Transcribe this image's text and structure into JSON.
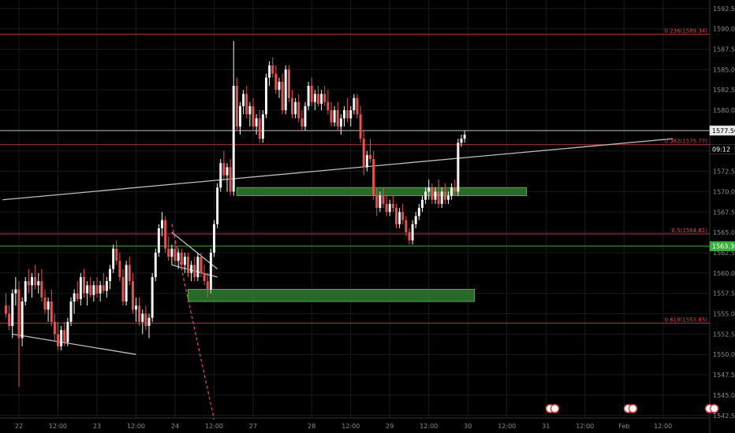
{
  "chart_data": {
    "type": "candlestick",
    "ylim": [
      1542,
      1595
    ],
    "y_ticks": [
      1542.5,
      1545,
      1547.5,
      1550,
      1552.5,
      1555,
      1557.5,
      1560,
      1562.5,
      1565,
      1567.5,
      1570,
      1572.5,
      1575,
      1577.5,
      1580,
      1582.5,
      1585,
      1587.5,
      1590,
      1592.5
    ],
    "x_ticks": [
      {
        "label": "22",
        "t": 0
      },
      {
        "label": "12:00",
        "t": 12
      },
      {
        "label": "23",
        "t": 24
      },
      {
        "label": "12:00",
        "t": 36
      },
      {
        "label": "24",
        "t": 48
      },
      {
        "label": "12:00",
        "t": 60
      },
      {
        "label": "27",
        "t": 72
      },
      {
        "label": "28",
        "t": 90
      },
      {
        "label": "12:00",
        "t": 102
      },
      {
        "label": "29",
        "t": 114
      },
      {
        "label": "12:00",
        "t": 126
      },
      {
        "label": "30",
        "t": 138
      },
      {
        "label": "12:00",
        "t": 150
      },
      {
        "label": "31",
        "t": 162
      },
      {
        "label": "12:00",
        "t": 174
      },
      {
        "label": "Feb",
        "t": 186
      },
      {
        "label": "12:00",
        "t": 198
      }
    ],
    "up_color": "#f5f5f5",
    "down_color": "#e05454",
    "grid": true,
    "fib_levels": [
      {
        "label": "0.236(1589.34)",
        "price": 1589.34
      },
      {
        "label": "0.382(1575.77)",
        "price": 1575.77
      },
      {
        "label": "0.5(1564.81)",
        "price": 1564.81
      },
      {
        "label": "0.618(1553.85)",
        "price": 1553.85
      }
    ],
    "horizontal_lines": [
      {
        "price": 1577.5,
        "color": "#bdbdbd"
      },
      {
        "price": 1563.3,
        "color": "#3fae3f"
      }
    ],
    "zones": [
      {
        "from_t": 67,
        "to_t": 156,
        "low": 1569.5,
        "high": 1570.5
      },
      {
        "from_t": 52,
        "to_t": 140,
        "low": 1556.5,
        "high": 1558
      }
    ],
    "trend_lines": [
      {
        "t1": -5,
        "p1": 1569,
        "t2": 201,
        "p2": 1576.5,
        "color": "#bdbdbd",
        "dashed": false
      },
      {
        "t1": -2,
        "p1": 1552.5,
        "t2": 36,
        "p2": 1550,
        "color": "#bdbdbd",
        "dashed": false
      },
      {
        "t1": 47,
        "p1": 1566,
        "t2": 60,
        "p2": 1542,
        "color": "#d34b4b",
        "dashed": true
      },
      {
        "t1": 47,
        "p1": 1565,
        "t2": 61,
        "p2": 1560.5,
        "color": "#bdbdbd",
        "dashed": false
      },
      {
        "t1": 47,
        "p1": 1561,
        "t2": 61,
        "p2": 1559.5,
        "color": "#bdbdbd",
        "dashed": false
      }
    ],
    "price_tags": [
      {
        "label": "1577.50",
        "price": 1577.5,
        "bg": "#e8e8e8",
        "fg": "#000"
      },
      {
        "label": "09:12",
        "price": 1575.2,
        "bg": "#000",
        "fg": "#fff"
      },
      {
        "label": "1563.30",
        "price": 1563.3,
        "bg": "#3fae3f",
        "fg": "#fff"
      }
    ],
    "candles": [
      [
        -4,
        1556,
        1557.5,
        1554.5,
        1555
      ],
      [
        -3,
        1555,
        1556,
        1553,
        1553.5
      ],
      [
        -2,
        1553.5,
        1558,
        1552,
        1557.5
      ],
      [
        -1,
        1557.5,
        1559.5,
        1556,
        1558
      ],
      [
        0,
        1558,
        1559,
        1546,
        1552
      ],
      [
        1,
        1552,
        1557,
        1551,
        1556.5
      ],
      [
        2,
        1556.5,
        1559.5,
        1556,
        1559
      ],
      [
        3,
        1559,
        1560.5,
        1557.5,
        1558.5
      ],
      [
        4,
        1558.5,
        1560,
        1557,
        1559.5
      ],
      [
        5,
        1559.5,
        1561,
        1558,
        1558.5
      ],
      [
        6,
        1558.5,
        1560,
        1557.5,
        1559
      ],
      [
        7,
        1559,
        1560.5,
        1556.5,
        1557
      ],
      [
        8,
        1557,
        1558,
        1555,
        1555.5
      ],
      [
        9,
        1555.5,
        1557,
        1554,
        1556.5
      ],
      [
        10,
        1556.5,
        1558,
        1553.5,
        1554
      ],
      [
        11,
        1554,
        1555,
        1551.5,
        1552.5
      ],
      [
        12,
        1552.5,
        1554,
        1550.5,
        1551
      ],
      [
        13,
        1551,
        1553.5,
        1550.5,
        1553
      ],
      [
        14,
        1553,
        1554,
        1551,
        1551.5
      ],
      [
        15,
        1551.5,
        1554.5,
        1551,
        1554
      ],
      [
        16,
        1554,
        1557,
        1553.5,
        1556.5
      ],
      [
        17,
        1556.5,
        1558,
        1555,
        1557.5
      ],
      [
        18,
        1557.5,
        1559,
        1556.5,
        1556.8
      ],
      [
        19,
        1556.8,
        1560,
        1556,
        1559.5
      ],
      [
        20,
        1559.5,
        1560.5,
        1557,
        1557.5
      ],
      [
        21,
        1557.5,
        1559,
        1556,
        1558.5
      ],
      [
        22,
        1558.5,
        1559.5,
        1557,
        1557.3
      ],
      [
        23,
        1557.3,
        1559,
        1556.5,
        1558.5
      ],
      [
        24,
        1558.5,
        1559.5,
        1557,
        1557.5
      ],
      [
        25,
        1557.5,
        1559,
        1556.5,
        1558.5
      ],
      [
        26,
        1558.5,
        1560,
        1557.5,
        1557.8
      ],
      [
        27,
        1557.8,
        1559.5,
        1557,
        1559
      ],
      [
        28,
        1559,
        1561,
        1558,
        1560.5
      ],
      [
        29,
        1560.5,
        1563.5,
        1560,
        1563
      ],
      [
        30,
        1563,
        1564,
        1561,
        1561.5
      ],
      [
        31,
        1561.5,
        1562.5,
        1559,
        1559.5
      ],
      [
        32,
        1559.5,
        1560.5,
        1556,
        1556.5
      ],
      [
        33,
        1556.5,
        1561.5,
        1556,
        1561
      ],
      [
        34,
        1561,
        1562,
        1558.5,
        1559
      ],
      [
        35,
        1559,
        1560,
        1555,
        1555.5
      ],
      [
        36,
        1555.5,
        1557,
        1554,
        1556
      ],
      [
        37,
        1556,
        1557,
        1553.5,
        1554
      ],
      [
        38,
        1554,
        1555.5,
        1552.5,
        1555
      ],
      [
        39,
        1555,
        1556,
        1553,
        1553.5
      ],
      [
        40,
        1553.5,
        1555,
        1552,
        1554.5
      ],
      [
        41,
        1554.5,
        1560,
        1554,
        1559.5
      ],
      [
        42,
        1559.5,
        1563,
        1559,
        1562.5
      ],
      [
        43,
        1562.5,
        1566,
        1562,
        1565.5
      ],
      [
        44,
        1565.5,
        1567.5,
        1564.5,
        1566.5
      ],
      [
        45,
        1566.5,
        1567,
        1562.5,
        1563
      ],
      [
        46,
        1563,
        1564.5,
        1561.5,
        1562
      ],
      [
        47,
        1562,
        1563.5,
        1561,
        1563
      ],
      [
        48,
        1563,
        1564,
        1561,
        1561.5
      ],
      [
        49,
        1561.5,
        1563,
        1560.5,
        1562.5
      ],
      [
        50,
        1562.5,
        1563,
        1560.5,
        1561
      ],
      [
        51,
        1561,
        1562.5,
        1560,
        1562
      ],
      [
        52,
        1562,
        1562.5,
        1559.5,
        1560
      ],
      [
        53,
        1560,
        1561.5,
        1559,
        1561
      ],
      [
        54,
        1561,
        1562,
        1559,
        1559.5
      ],
      [
        55,
        1559.5,
        1562.5,
        1559,
        1562
      ],
      [
        56,
        1562,
        1562.5,
        1559.5,
        1560
      ],
      [
        57,
        1560,
        1561,
        1558.5,
        1559
      ],
      [
        58,
        1559,
        1560,
        1557,
        1558
      ],
      [
        59,
        1558,
        1563,
        1557.5,
        1562.5
      ],
      [
        60,
        1562.5,
        1566.5,
        1562,
        1566
      ],
      [
        61,
        1566,
        1571,
        1565.5,
        1570.5
      ],
      [
        62,
        1570.5,
        1574,
        1570,
        1573.5
      ],
      [
        63,
        1573.5,
        1575,
        1571.5,
        1572
      ],
      [
        64,
        1572,
        1573.5,
        1570,
        1573
      ],
      [
        65,
        1573,
        1574,
        1569.5,
        1570
      ],
      [
        66,
        1570,
        1588.5,
        1569.5,
        1583
      ],
      [
        67,
        1583,
        1584,
        1577.5,
        1578
      ],
      [
        68,
        1578,
        1581,
        1577,
        1580.5
      ],
      [
        69,
        1580.5,
        1582.5,
        1579.5,
        1582
      ],
      [
        70,
        1582,
        1583,
        1579,
        1579.5
      ],
      [
        71,
        1579.5,
        1581,
        1578,
        1580.5
      ],
      [
        72,
        1580.5,
        1581.5,
        1577.5,
        1578
      ],
      [
        73,
        1578,
        1579.5,
        1577,
        1579
      ],
      [
        74,
        1579,
        1580,
        1576,
        1576.5
      ],
      [
        75,
        1576.5,
        1580,
        1576,
        1579.5
      ],
      [
        76,
        1579.5,
        1584.5,
        1579,
        1584
      ],
      [
        77,
        1584,
        1586,
        1583,
        1585.5
      ],
      [
        78,
        1585.5,
        1586.5,
        1584,
        1584.5
      ],
      [
        79,
        1584.5,
        1585.5,
        1582,
        1582.5
      ],
      [
        80,
        1582.5,
        1584,
        1581.5,
        1583.5
      ],
      [
        81,
        1583.5,
        1584.5,
        1579.5,
        1580
      ],
      [
        82,
        1580,
        1585.5,
        1579.5,
        1585
      ],
      [
        83,
        1585,
        1585.5,
        1581,
        1581.5
      ],
      [
        84,
        1581.5,
        1582.5,
        1579,
        1579.5
      ],
      [
        85,
        1579.5,
        1581.5,
        1579,
        1581
      ],
      [
        86,
        1581,
        1582,
        1578.5,
        1579
      ],
      [
        87,
        1579,
        1580,
        1577.5,
        1578
      ],
      [
        88,
        1578,
        1581,
        1577.5,
        1580.5
      ],
      [
        89,
        1580.5,
        1583.5,
        1580,
        1583
      ],
      [
        90,
        1583,
        1584,
        1580.5,
        1581
      ],
      [
        91,
        1581,
        1582.5,
        1580,
        1582
      ],
      [
        92,
        1582,
        1583,
        1580.5,
        1580.8
      ],
      [
        93,
        1580.8,
        1582.5,
        1580,
        1582
      ],
      [
        94,
        1582,
        1583,
        1580.5,
        1581
      ],
      [
        95,
        1581,
        1582.5,
        1579.5,
        1580
      ],
      [
        96,
        1580,
        1581,
        1578,
        1578.5
      ],
      [
        97,
        1578.5,
        1580.5,
        1578,
        1580
      ],
      [
        98,
        1580,
        1581,
        1577.5,
        1578
      ],
      [
        99,
        1578,
        1579.5,
        1577,
        1579
      ],
      [
        100,
        1579,
        1580.5,
        1578,
        1580
      ],
      [
        101,
        1580,
        1581.5,
        1578.5,
        1579
      ],
      [
        102,
        1579,
        1580.5,
        1578,
        1580
      ],
      [
        103,
        1580,
        1582,
        1579.5,
        1581.5
      ],
      [
        104,
        1581.5,
        1582,
        1579,
        1579.5
      ],
      [
        105,
        1579.5,
        1580.5,
        1576,
        1576.5
      ],
      [
        106,
        1576.5,
        1577.5,
        1572,
        1573
      ],
      [
        107,
        1573,
        1575,
        1572.5,
        1574.5
      ],
      [
        108,
        1574.5,
        1576.5,
        1573.5,
        1574
      ],
      [
        109,
        1574,
        1575,
        1569,
        1569.5
      ],
      [
        110,
        1569.5,
        1570.5,
        1567,
        1568
      ],
      [
        111,
        1568,
        1570,
        1567.5,
        1569.5
      ],
      [
        112,
        1569.5,
        1570.5,
        1568,
        1568.5
      ],
      [
        113,
        1568.5,
        1569.5,
        1567,
        1567.5
      ],
      [
        114,
        1567.5,
        1569,
        1567,
        1568.5
      ],
      [
        115,
        1568.5,
        1569.5,
        1567.5,
        1568
      ],
      [
        116,
        1568,
        1568.5,
        1565.5,
        1566
      ],
      [
        117,
        1566,
        1568,
        1565.5,
        1567.5
      ],
      [
        118,
        1567.5,
        1568.5,
        1566,
        1566.5
      ],
      [
        119,
        1566.5,
        1567,
        1564.5,
        1565
      ],
      [
        120,
        1565,
        1565.5,
        1563.5,
        1564
      ],
      [
        121,
        1564,
        1566.5,
        1563.5,
        1566
      ],
      [
        122,
        1566,
        1567.5,
        1565.5,
        1567
      ],
      [
        123,
        1567,
        1568.5,
        1566.5,
        1568
      ],
      [
        124,
        1568,
        1569.5,
        1567.5,
        1569
      ],
      [
        125,
        1569,
        1570.5,
        1568.5,
        1570
      ],
      [
        126,
        1570,
        1571.5,
        1569,
        1570.5
      ],
      [
        127,
        1570.5,
        1571,
        1568.5,
        1569
      ],
      [
        128,
        1569,
        1570.5,
        1568.5,
        1570
      ],
      [
        129,
        1570,
        1571.5,
        1568,
        1568.5
      ],
      [
        130,
        1568.5,
        1570.5,
        1568,
        1570
      ],
      [
        131,
        1570,
        1571,
        1568.5,
        1569
      ],
      [
        132,
        1569,
        1570,
        1568.5,
        1569.5
      ],
      [
        133,
        1569.5,
        1571,
        1569,
        1570.5
      ],
      [
        134,
        1570.5,
        1571.5,
        1569.5,
        1570
      ],
      [
        135,
        1570,
        1576.5,
        1569.5,
        1576
      ],
      [
        136,
        1576,
        1577,
        1575.5,
        1576.5
      ],
      [
        137,
        1576.5,
        1577.5,
        1576,
        1577
      ]
    ]
  }
}
